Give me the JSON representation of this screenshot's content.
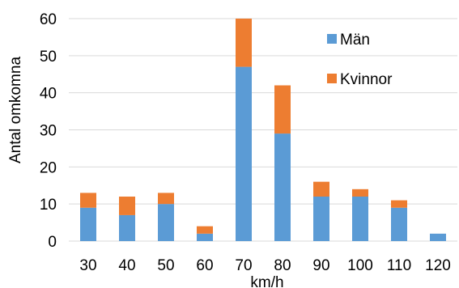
{
  "chart_data": {
    "type": "bar",
    "stacked": true,
    "title": "",
    "xlabel": "km/h",
    "ylabel": "Antal omkomna",
    "categories": [
      "30",
      "40",
      "50",
      "60",
      "70",
      "80",
      "90",
      "100",
      "110",
      "120"
    ],
    "series": [
      {
        "name": "Män",
        "values": [
          9,
          7,
          10,
          2,
          47,
          29,
          12,
          12,
          9,
          2
        ],
        "color": "#5B9BD5"
      },
      {
        "name": "Kvinnor",
        "values": [
          4,
          5,
          3,
          2,
          13,
          13,
          4,
          2,
          2,
          0
        ],
        "color": "#ED7D31"
      }
    ],
    "yticks": [
      "0",
      "10",
      "20",
      "30",
      "40",
      "50",
      "60"
    ],
    "ylim": [
      0,
      60
    ],
    "grid": true,
    "gridColor": "#D9D9D9",
    "legend_position": "top-right, inside plot"
  }
}
